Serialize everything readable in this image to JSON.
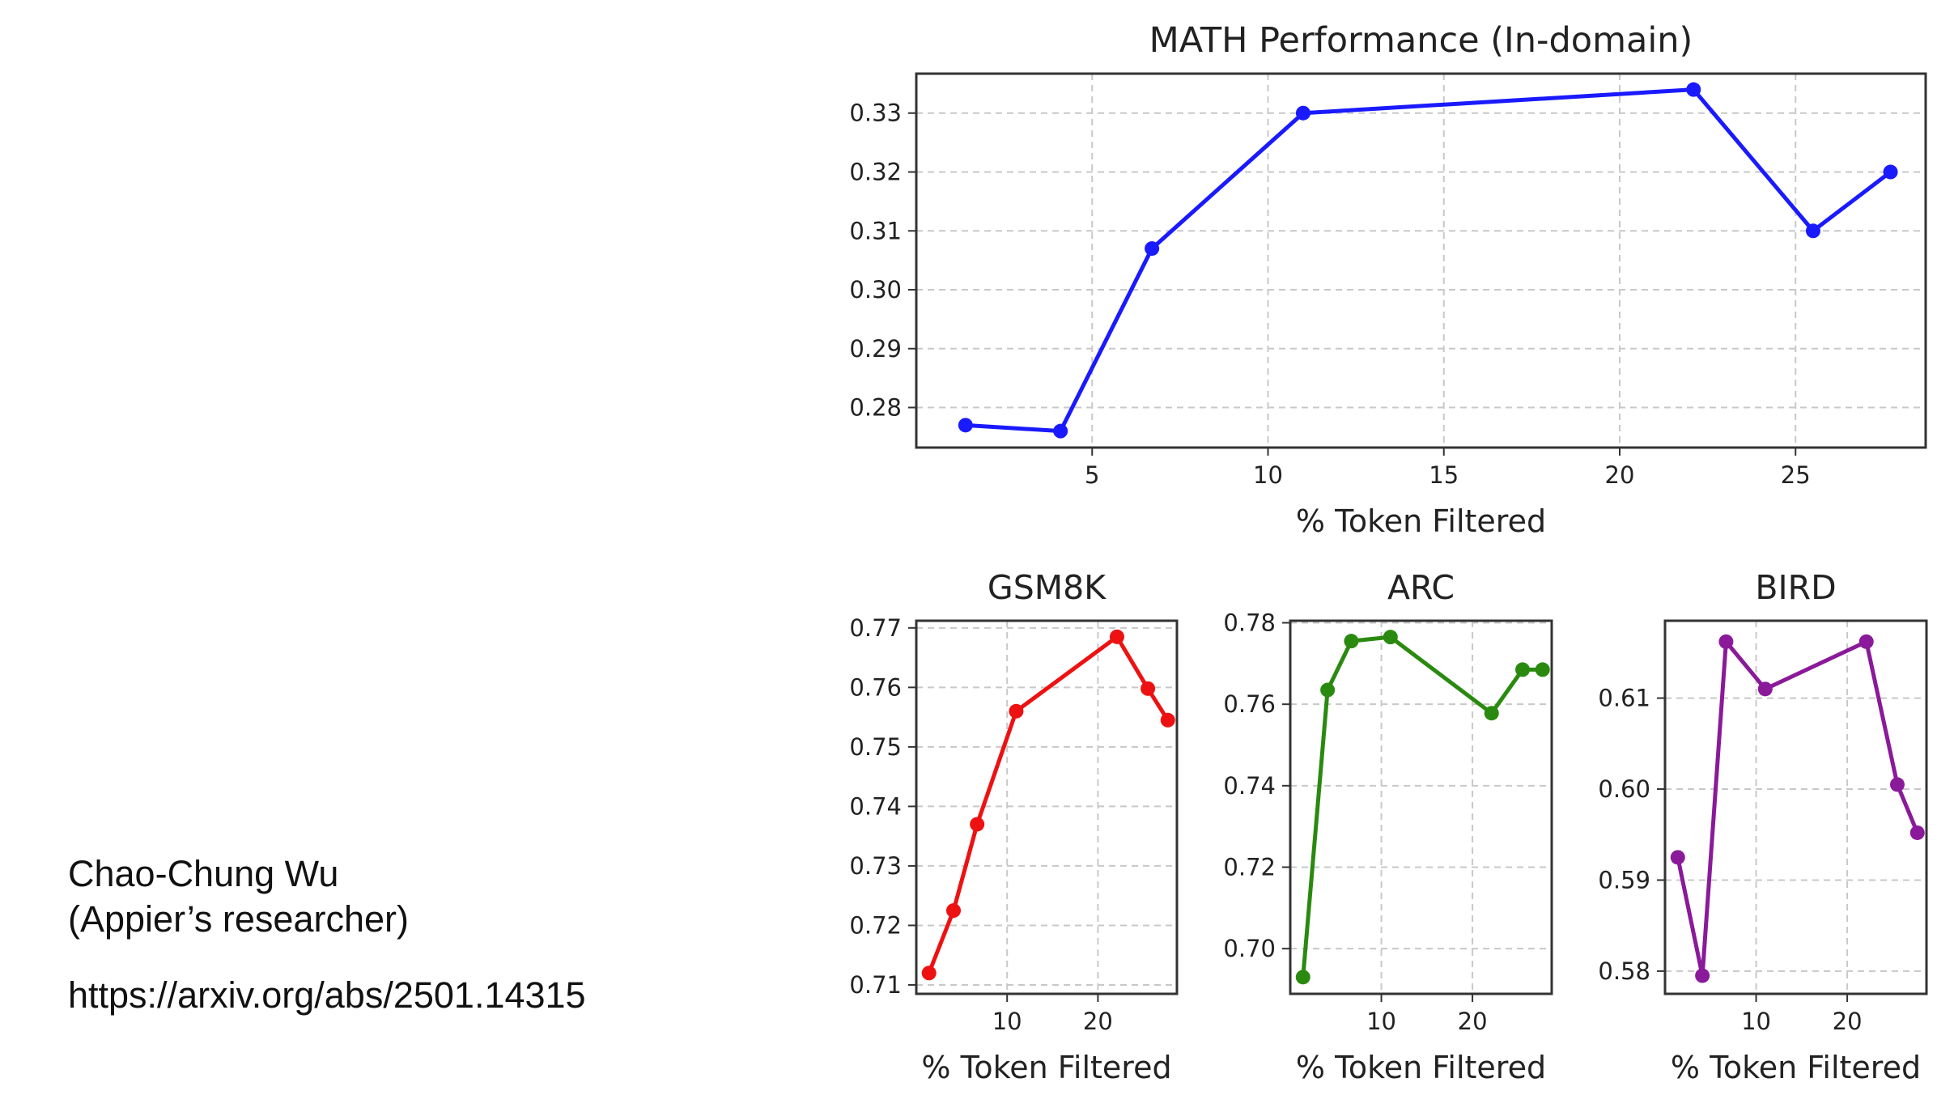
{
  "caption": {
    "name": "Chao-Chung Wu",
    "role": "(Appier’s researcher)",
    "link": "https://arxiv.org/abs/2501.14315"
  },
  "chart_data": [
    {
      "id": "math",
      "type": "line",
      "title": "MATH Performance (In-domain)",
      "xlabel": "% Token Filtered",
      "ylabel": "",
      "color": "#1a1aff",
      "grid": true,
      "xlim": [
        0,
        28.7
      ],
      "ylim": [
        0.2732,
        0.3367
      ],
      "xticks": [
        5,
        10,
        15,
        20,
        25
      ],
      "yticks": [
        0.28,
        0.29,
        0.3,
        0.31,
        0.32,
        0.33
      ],
      "ytick_labels": [
        "0.28",
        "0.29",
        "0.30",
        "0.31",
        "0.32",
        "0.33"
      ],
      "series": [
        {
          "x": [
            1.4,
            4.1,
            6.7,
            11.0,
            22.1,
            25.5,
            27.7
          ],
          "y": [
            0.277,
            0.276,
            0.307,
            0.33,
            0.334,
            0.31,
            0.32
          ]
        }
      ]
    },
    {
      "id": "gsm8k",
      "type": "line",
      "title": "GSM8K",
      "xlabel": "% Token Filtered",
      "ylabel": "",
      "color": "#ee1111",
      "grid": true,
      "xlim": [
        0,
        28.7
      ],
      "ylim": [
        0.7085,
        0.7712
      ],
      "xticks": [
        10,
        20
      ],
      "yticks": [
        0.71,
        0.72,
        0.73,
        0.74,
        0.75,
        0.76,
        0.77
      ],
      "ytick_labels": [
        "0.71",
        "0.72",
        "0.73",
        "0.74",
        "0.75",
        "0.76",
        "0.77"
      ],
      "series": [
        {
          "x": [
            1.4,
            4.1,
            6.7,
            11.0,
            22.1,
            25.5,
            27.7
          ],
          "y": [
            0.712,
            0.7225,
            0.737,
            0.756,
            0.7685,
            0.7598,
            0.7545
          ]
        }
      ]
    },
    {
      "id": "arc",
      "type": "line",
      "title": "ARC",
      "xlabel": "% Token Filtered",
      "ylabel": "",
      "color": "#2a8a10",
      "grid": true,
      "xlim": [
        0,
        28.7
      ],
      "ylim": [
        0.6889,
        0.7805
      ],
      "xticks": [
        10,
        20
      ],
      "yticks": [
        0.7,
        0.72,
        0.74,
        0.76,
        0.78
      ],
      "ytick_labels": [
        "0.70",
        "0.72",
        "0.74",
        "0.76",
        "0.78"
      ],
      "series": [
        {
          "x": [
            1.4,
            4.1,
            6.7,
            11.0,
            22.1,
            25.5,
            27.7
          ],
          "y": [
            0.693,
            0.7635,
            0.7755,
            0.7765,
            0.7578,
            0.7685,
            0.7685
          ]
        }
      ]
    },
    {
      "id": "bird",
      "type": "line",
      "title": "BIRD",
      "xlabel": "% Token Filtered",
      "ylabel": "",
      "color": "#8a1a9a",
      "grid": true,
      "xlim": [
        0,
        28.7
      ],
      "ylim": [
        0.5775,
        0.6185
      ],
      "xticks": [
        10,
        20
      ],
      "yticks": [
        0.58,
        0.59,
        0.6,
        0.61
      ],
      "ytick_labels": [
        "0.58",
        "0.59",
        "0.60",
        "0.61"
      ],
      "series": [
        {
          "x": [
            1.4,
            4.1,
            6.7,
            11.0,
            22.1,
            25.5,
            27.7
          ],
          "y": [
            0.5925,
            0.5795,
            0.6162,
            0.611,
            0.6162,
            0.6005,
            0.5952
          ]
        }
      ]
    }
  ]
}
